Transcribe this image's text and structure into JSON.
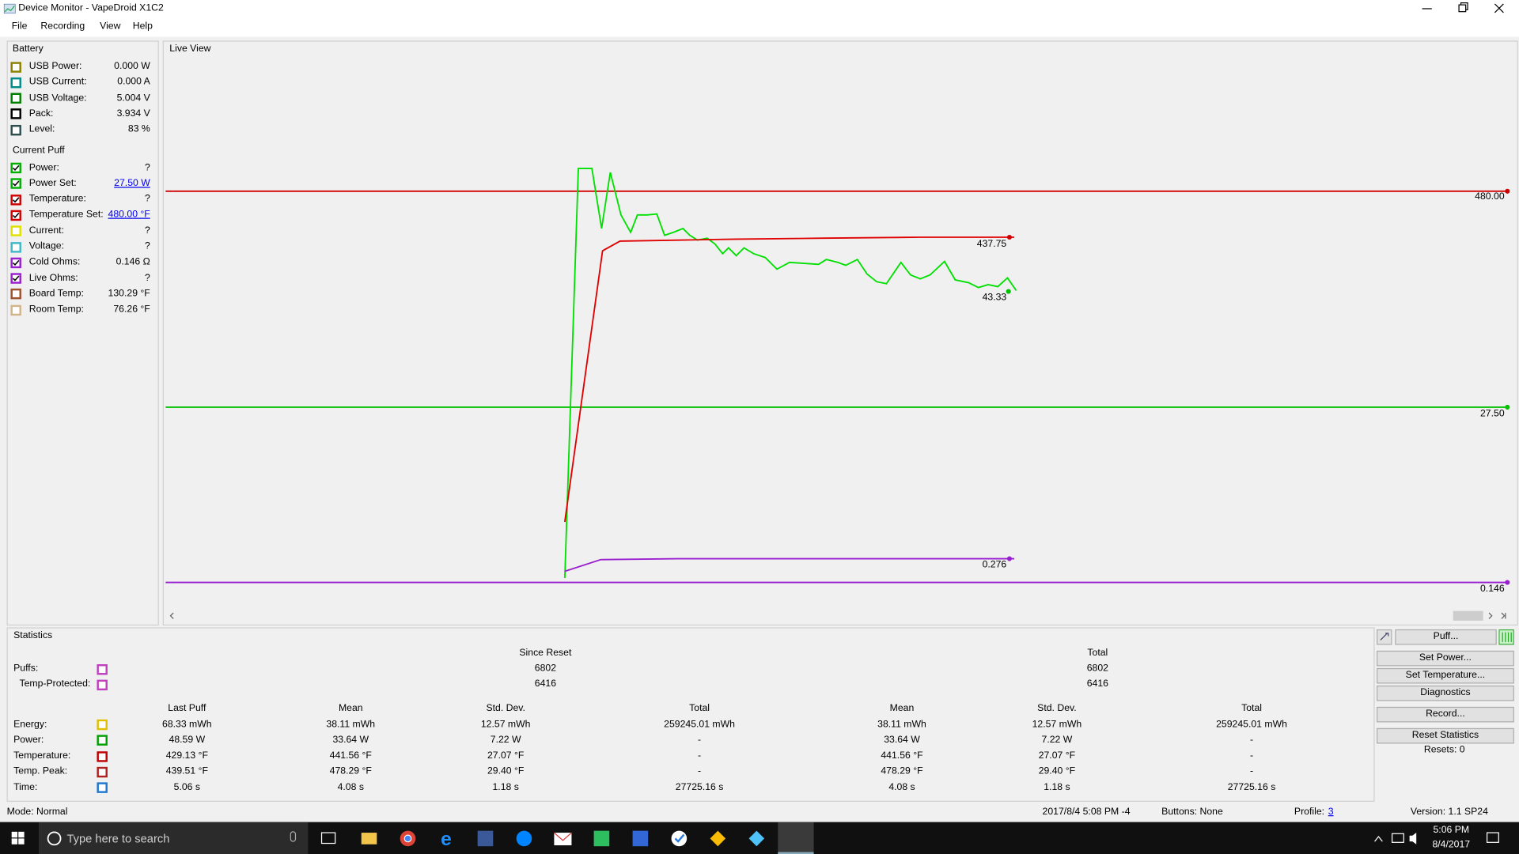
{
  "window": {
    "title": "Device Monitor - VapeDroid X1C2"
  },
  "menu": [
    "File",
    "Recording",
    "View",
    "Help"
  ],
  "battery": {
    "title": "Battery",
    "rows": [
      [
        "USB Power:",
        "0.000 W"
      ],
      [
        "USB Current:",
        "0.000 A"
      ],
      [
        "USB Voltage:",
        "5.004 V"
      ],
      [
        "Pack:",
        "3.934 V"
      ],
      [
        "Level:",
        "83 %"
      ]
    ]
  },
  "current_puff": {
    "title": "Current Puff",
    "rows": [
      [
        "Power:",
        "?"
      ],
      [
        "Power Set:",
        "27.50 W"
      ],
      [
        "Temperature:",
        "?"
      ],
      [
        "Temperature Set:",
        "480.00 °F"
      ],
      [
        "Current:",
        "?"
      ],
      [
        "Voltage:",
        "?"
      ],
      [
        "Cold Ohms:",
        "0.146 Ω"
      ],
      [
        "Live Ohms:",
        "?"
      ],
      [
        "Board Temp:",
        "130.29 °F"
      ],
      [
        "Room Temp:",
        "76.26 °F"
      ]
    ]
  },
  "live_view": {
    "title": "Live View",
    "labels": [
      "480.00",
      "437.75",
      "43.33",
      "27.50",
      "0.276",
      "0.146"
    ]
  },
  "statistics": {
    "title": "Statistics",
    "since_reset": "Since Reset",
    "total": "Total",
    "counts": [
      [
        "Puffs:",
        "6802",
        "6802"
      ],
      [
        "Temp-Protected:",
        "6416",
        "6416"
      ]
    ],
    "columns": [
      "Last Puff",
      "Mean",
      "Std. Dev.",
      "Total",
      "Mean",
      "Std. Dev.",
      "Total"
    ],
    "rows": [
      [
        "Energy:",
        "68.33 mWh",
        "38.11 mWh",
        "12.57 mWh",
        "259245.01 mWh",
        "38.11 mWh",
        "12.57 mWh",
        "259245.01 mWh"
      ],
      [
        "Power:",
        "48.59 W",
        "33.64 W",
        "7.22 W",
        "-",
        "33.64 W",
        "7.22 W",
        "-"
      ],
      [
        "Temperature:",
        "429.13 °F",
        "441.56 °F",
        "27.07 °F",
        "-",
        "441.56 °F",
        "27.07 °F",
        "-"
      ],
      [
        "Temp. Peak:",
        "439.51 °F",
        "478.29 °F",
        "29.40 °F",
        "-",
        "478.29 °F",
        "29.40 °F",
        "-"
      ],
      [
        "Time:",
        "5.06 s",
        "4.08 s",
        "1.18 s",
        "27725.16 s",
        "4.08 s",
        "1.18 s",
        "27725.16 s"
      ]
    ]
  },
  "buttons": [
    "Puff...",
    "Set Power...",
    "Set Temperature...",
    "Diagnostics",
    "Record...",
    "Reset Statistics"
  ],
  "resets": "Resets: 0",
  "status": {
    "mode": "Mode: Normal",
    "datetime": "2017/8/4 5:08 PM -4",
    "buttons": "Buttons: None",
    "profile_label": "Profile:",
    "profile": "3",
    "version": "Version: 1.1 SP24"
  },
  "taskbar": {
    "search": "Type here to search",
    "time": "5:06 PM",
    "date": "8/4/2017"
  }
}
